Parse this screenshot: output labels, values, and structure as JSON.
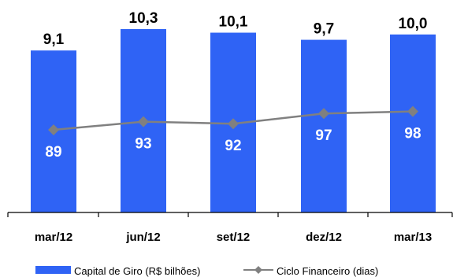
{
  "chart_data": {
    "type": "bar",
    "categories": [
      "mar/12",
      "jun/12",
      "set/12",
      "dez/12",
      "mar/13"
    ],
    "series": [
      {
        "name": "Capital de Giro (R$ bilhões)",
        "type": "bar",
        "values": [
          9.1,
          10.3,
          10.1,
          9.7,
          10.0
        ],
        "labels": [
          "9,1",
          "10,3",
          "10,1",
          "9,7",
          "10,0"
        ],
        "color": "#2F63F5"
      },
      {
        "name": "Ciclo Financeiro (dias)",
        "type": "line",
        "values": [
          89,
          93,
          92,
          97,
          98
        ],
        "labels": [
          "89",
          "93",
          "92",
          "97",
          "98"
        ],
        "color": "#808080",
        "marker": "diamond"
      }
    ],
    "legend": "bottom",
    "grid": false
  }
}
